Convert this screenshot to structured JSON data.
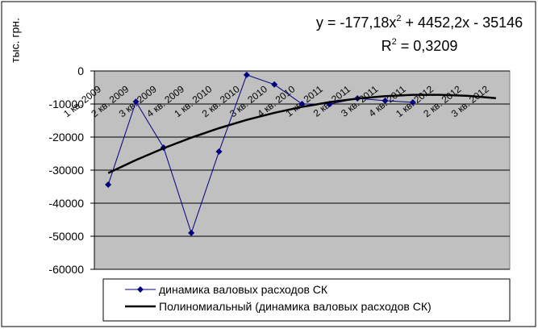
{
  "chart_data": {
    "type": "line",
    "y_label": "тыс. грн.",
    "annotations": {
      "equation": [
        "y = -177,18x",
        "2",
        " + 4452,2x - 35146"
      ],
      "r_squared": [
        "R",
        "2",
        " = 0,3209"
      ]
    },
    "categories": [
      "1 кв. 2009",
      "2 кв. 2009",
      "3 кв. 2009",
      "4 кв. 2009",
      "1 кв. 2010",
      "2 кв. 2010",
      "3 кв. 2010",
      "4 кв. 2010",
      "1 кв. 2011",
      "2 кв. 2011",
      "3 кв. 2011",
      "4 кв. 2011",
      "1 кв. 2012",
      "2 кв. 2012",
      "3 кв. 2012"
    ],
    "series": [
      {
        "name": "динамика валовых расходов СК",
        "color": "#000080",
        "marker": "diamond",
        "values": [
          -34400,
          -9300,
          -23200,
          -49000,
          -24400,
          -1200,
          -4100,
          -10000,
          -10000,
          -8300,
          -9000,
          -9500,
          null,
          null,
          null
        ]
      },
      {
        "name": "Полиномиальный (динамика валовых расходов СК)",
        "color": "#000000",
        "marker": "none",
        "values": [
          -30871,
          -26950,
          -23384,
          -20172,
          -17315,
          -14811,
          -12662,
          -10868,
          -9428,
          -8342,
          -7611,
          -7234,
          -7211,
          -7542,
          -8229
        ]
      }
    ],
    "ylim": [
      -60000,
      0
    ],
    "yticks": [
      0,
      -10000,
      -20000,
      -30000,
      -40000,
      -50000,
      -60000
    ],
    "grid": true,
    "plot_background": "#c0c0c0"
  }
}
